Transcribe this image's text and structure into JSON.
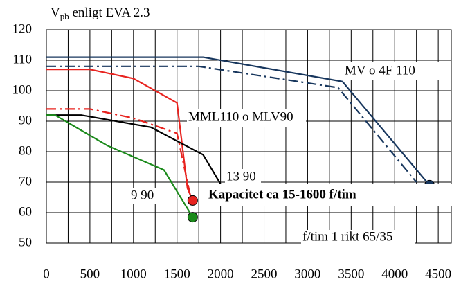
{
  "chart_data": {
    "type": "line",
    "title": {
      "main": "V",
      "subscript": "pb",
      "rest": " enligt EVA 2.3"
    },
    "xlim": [
      0,
      4650
    ],
    "ylim": [
      50,
      120
    ],
    "xticks": [
      0,
      500,
      1000,
      1500,
      2000,
      2500,
      3000,
      3500,
      4000,
      4500
    ],
    "xminorticks": [
      250,
      750,
      1250,
      1750,
      2250,
      2750,
      3250,
      3750,
      4250
    ],
    "yticks": [
      50,
      60,
      70,
      80,
      90,
      100,
      110,
      120
    ],
    "grid": true,
    "series": [
      {
        "color": "#17365d",
        "style": "solid",
        "marker": true,
        "x": [
          0,
          1800,
          3400,
          4400
        ],
        "values": [
          111,
          111,
          103,
          69
        ]
      },
      {
        "color": "#17365d",
        "style": "dashdot",
        "marker": false,
        "x": [
          0,
          1750,
          3350,
          4250
        ],
        "values": [
          108,
          108,
          101,
          70
        ]
      },
      {
        "color": "#e8231f",
        "style": "solid",
        "marker": true,
        "x": [
          0,
          500,
          1000,
          1500,
          1620,
          1680
        ],
        "values": [
          107,
          107,
          104,
          96,
          68,
          64
        ]
      },
      {
        "color": "#e8231f",
        "style": "dashdot",
        "marker": false,
        "x": [
          0,
          500,
          1000,
          1500,
          1650
        ],
        "values": [
          94,
          94,
          91,
          86,
          66
        ]
      },
      {
        "color": "#000000",
        "style": "solid",
        "marker": false,
        "x": [
          0,
          400,
          1200,
          1800,
          2050
        ],
        "values": [
          92,
          92,
          88,
          79,
          67
        ]
      },
      {
        "color": "#1a8a1a",
        "style": "solid",
        "marker": true,
        "x": [
          0,
          100,
          700,
          1350,
          1680
        ],
        "values": [
          92,
          92,
          82,
          74,
          58.5
        ]
      }
    ],
    "annotations": [
      "MV o 4F 110",
      "MML110 o MLV90",
      "13 90",
      "9 90",
      "Kapacitet ca 15-1600 f/tim",
      "f/tim 1 rikt 65/35"
    ]
  }
}
